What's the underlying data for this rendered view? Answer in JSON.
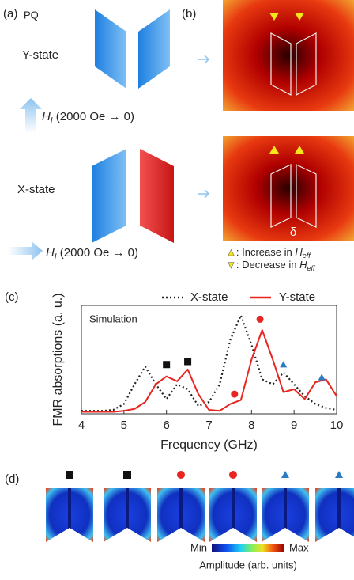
{
  "panel_a": {
    "label": "(a)",
    "corner": "PQ",
    "top_state": "Y-state",
    "bottom_state": "X-state",
    "field": {
      "symbol": "H",
      "subscript": "I",
      "text": " (2000 Oe → 0)"
    }
  },
  "panel_b": {
    "label": "(b)",
    "gap_label": "δ",
    "legend": [
      {
        "marker": "▲",
        "color": "#f5e71c",
        "text": ": Increase in ",
        "symbol": "H",
        "subscript": "eff"
      },
      {
        "marker": "▼",
        "color": "#f5e71c",
        "text": ": Decrease in ",
        "symbol": "H",
        "subscript": "eff"
      }
    ]
  },
  "panel_c_label": "(c)",
  "chart_data": {
    "type": "line",
    "x_label": "Frequency (GHz)",
    "y_label": "FMR absorptions (a. u.)",
    "annotation": "Simulation",
    "x": [
      4,
      4.25,
      4.5,
      4.75,
      5,
      5.25,
      5.5,
      5.75,
      6,
      6.25,
      6.5,
      6.75,
      7,
      7.25,
      7.5,
      7.75,
      8,
      8.25,
      8.5,
      8.75,
      9,
      9.25,
      9.5,
      9.75,
      10
    ],
    "series": [
      {
        "name": "X-state",
        "color": "#222222",
        "dash": true,
        "values": [
          0.03,
          0.03,
          0.03,
          0.04,
          0.1,
          0.3,
          0.48,
          0.3,
          0.15,
          0.3,
          0.25,
          0.08,
          0.12,
          0.3,
          0.75,
          1.0,
          0.7,
          0.35,
          0.3,
          0.42,
          0.3,
          0.18,
          0.1,
          0.06,
          0.04
        ]
      },
      {
        "name": "Y-state",
        "color": "#e8251f",
        "dash": false,
        "values": [
          0.02,
          0.02,
          0.02,
          0.02,
          0.03,
          0.05,
          0.12,
          0.3,
          0.38,
          0.33,
          0.45,
          0.2,
          0.04,
          0.03,
          0.1,
          0.14,
          0.55,
          0.85,
          0.55,
          0.22,
          0.25,
          0.15,
          0.32,
          0.35,
          0.18
        ]
      }
    ],
    "markers": [
      {
        "shape": "square",
        "color": "#111111",
        "x": 6.0,
        "y": 0.5
      },
      {
        "shape": "square",
        "color": "#111111",
        "x": 6.5,
        "y": 0.53
      },
      {
        "shape": "circle",
        "color": "#e8251f",
        "x": 7.6,
        "y": 0.2
      },
      {
        "shape": "circle",
        "color": "#e8251f",
        "x": 8.2,
        "y": 0.96
      },
      {
        "shape": "triangle",
        "color": "#2b7bc4",
        "x": 8.75,
        "y": 0.5
      },
      {
        "shape": "triangle",
        "color": "#2b7bc4",
        "x": 9.65,
        "y": 0.37
      }
    ],
    "xlim": [
      4,
      10
    ],
    "ylim": [
      0,
      1.1
    ],
    "xticks": [
      4,
      5,
      6,
      7,
      8,
      9,
      10
    ]
  },
  "panel_d": {
    "label": "(d)",
    "min": "Min",
    "max": "Max",
    "colorbar_label": "Amplitude (arb. units)",
    "modes": [
      {
        "shape": "square",
        "color": "#111111"
      },
      {
        "shape": "square",
        "color": "#111111"
      },
      {
        "shape": "circle",
        "color": "#e8251f"
      },
      {
        "shape": "circle",
        "color": "#e8251f"
      },
      {
        "shape": "triangle",
        "color": "#2b7bc4"
      },
      {
        "shape": "triangle",
        "color": "#2b7bc4"
      }
    ]
  }
}
